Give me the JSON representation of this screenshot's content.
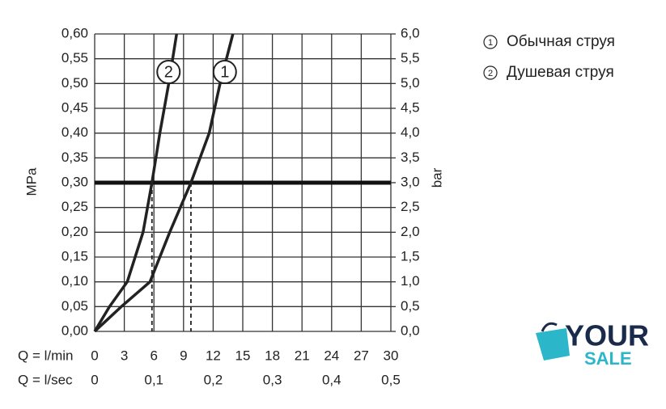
{
  "chart_data": {
    "type": "line",
    "xlabel": "Q = l/min",
    "x2label": "Q = l/sec",
    "ylabel": "MPa",
    "y2label": "bar",
    "xlim": [
      0,
      30
    ],
    "xticks": [
      0,
      3,
      6,
      9,
      12,
      15,
      18,
      21,
      24,
      27,
      30
    ],
    "x2lim": [
      0,
      0.5
    ],
    "x2ticks": [
      0,
      {
        "value": 0.1,
        "label": "0,1"
      },
      {
        "value": 0.2,
        "label": "0,2"
      },
      {
        "value": 0.3,
        "label": "0,3"
      },
      {
        "value": 0.4,
        "label": "0,4"
      },
      {
        "value": 0.5,
        "label": "0,5"
      }
    ],
    "ylim": [
      0,
      0.6
    ],
    "yticks": [
      {
        "value": 0,
        "label": "0,00"
      },
      {
        "value": 0.05,
        "label": "0,05"
      },
      {
        "value": 0.1,
        "label": "0,10"
      },
      {
        "value": 0.15,
        "label": "0,15"
      },
      {
        "value": 0.2,
        "label": "0,20"
      },
      {
        "value": 0.25,
        "label": "0,25"
      },
      {
        "value": 0.3,
        "label": "0,30"
      },
      {
        "value": 0.35,
        "label": "0,35"
      },
      {
        "value": 0.4,
        "label": "0,40"
      },
      {
        "value": 0.45,
        "label": "0,45"
      },
      {
        "value": 0.5,
        "label": "0,50"
      },
      {
        "value": 0.55,
        "label": "0,55"
      },
      {
        "value": 0.6,
        "label": "0,60"
      }
    ],
    "y2lim": [
      0,
      6
    ],
    "y2ticks": [
      {
        "value": 0,
        "label": "0,0"
      },
      {
        "value": 0.5,
        "label": "0,5"
      },
      {
        "value": 1,
        "label": "1,0"
      },
      {
        "value": 1.5,
        "label": "1,5"
      },
      {
        "value": 2,
        "label": "2,0"
      },
      {
        "value": 2.5,
        "label": "2,5"
      },
      {
        "value": 3,
        "label": "3,0"
      },
      {
        "value": 3.5,
        "label": "3,5"
      },
      {
        "value": 4,
        "label": "4,0"
      },
      {
        "value": 4.5,
        "label": "4,5"
      },
      {
        "value": 5,
        "label": "5,0"
      },
      {
        "value": 5.5,
        "label": "5,5"
      },
      {
        "value": 6,
        "label": "6,0"
      }
    ],
    "grid": true,
    "reference_line": 0.3,
    "series": [
      {
        "name": "Обычная струя",
        "label": "1",
        "color": "#222222",
        "x": [
          0,
          2.7,
          5.6,
          7.6,
          9.75,
          11.6,
          12.7,
          14.0
        ],
        "values": [
          0,
          0.05,
          0.1,
          0.2,
          0.3,
          0.4,
          0.5,
          0.6
        ]
      },
      {
        "name": "Душевая струя",
        "label": "2",
        "color": "#222222",
        "x": [
          0,
          1.5,
          3.3,
          4.9,
          5.8,
          6.6,
          7.5,
          8.3
        ],
        "values": [
          0,
          0.05,
          0.1,
          0.2,
          0.3,
          0.4,
          0.5,
          0.6
        ]
      }
    ]
  },
  "watermark": {
    "line1": "YOUR",
    "line2": "SALE"
  }
}
